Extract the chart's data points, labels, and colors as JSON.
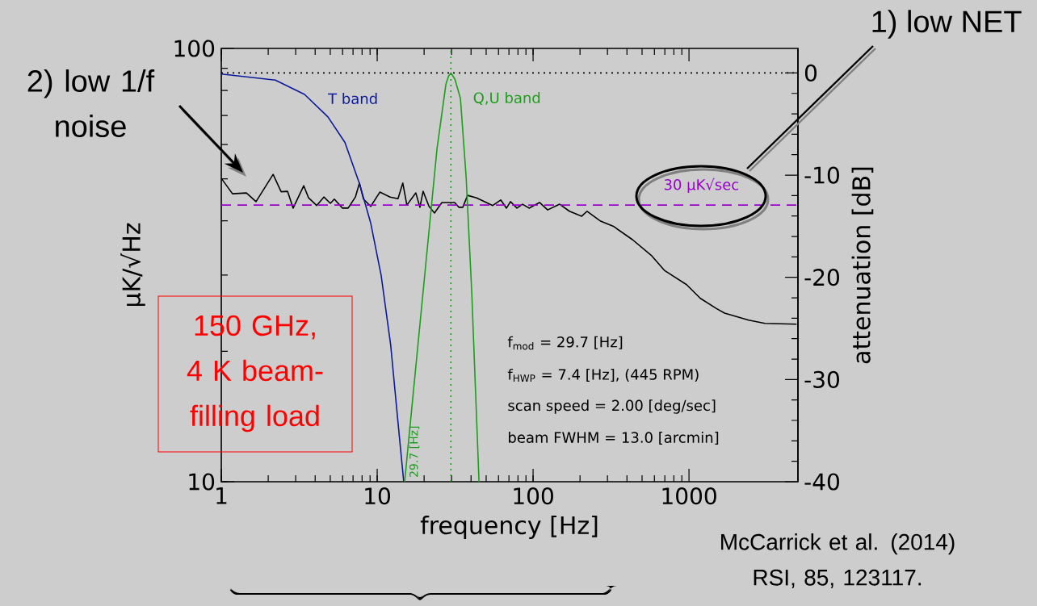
{
  "chart_data": {
    "type": "line",
    "xlabel": "frequency [Hz]",
    "ylabel": "μK/√Hz",
    "y2label": "attenuation [dB]",
    "xlim": [
      1,
      5000
    ],
    "xticks": [
      1,
      10,
      100,
      1000
    ],
    "log": "xy",
    "ylim": [
      10,
      100
    ],
    "yticks": [
      10,
      100
    ],
    "y2lim": [
      -40,
      2.4
    ],
    "y2ticks": [
      0,
      -10,
      -20,
      -30,
      -40
    ],
    "grid": false,
    "series": [
      {
        "color": "#000000",
        "axis": "y",
        "x": [
          1.01,
          1.18,
          1.45,
          1.67,
          2.15,
          2.42,
          2.66,
          2.89,
          3.38,
          3.63,
          4.09,
          4.55,
          5.01,
          5.31,
          5.99,
          6.51,
          7.25,
          7.69,
          8.17,
          9.09,
          10.4,
          12.1,
          13.6,
          14.6,
          15.5,
          17.7,
          18.8,
          19.7,
          21.5,
          23.3,
          26.0,
          31.4,
          33.4,
          35.4,
          38.0,
          43.4,
          55.1,
          62.0,
          67.5,
          71.6,
          78.8,
          85.6,
          94.2,
          110,
          124,
          148,
          171,
          205,
          222,
          269,
          330,
          434,
          578,
          699,
          965,
          1183,
          1500,
          1690,
          2417,
          3069,
          4900
        ],
        "values": [
          49.9,
          46.2,
          46.4,
          44.3,
          51.2,
          46.7,
          46.8,
          42.8,
          48.2,
          45.2,
          43.4,
          45.4,
          43.9,
          44.9,
          42.8,
          42.8,
          45.4,
          48.9,
          44.9,
          43.2,
          46.6,
          45.4,
          45.0,
          48.9,
          43.5,
          46.4,
          43.0,
          46.8,
          43.2,
          41.7,
          44.1,
          44.1,
          43.0,
          43.0,
          45.8,
          45.2,
          43.4,
          44.7,
          42.8,
          44.3,
          42.8,
          43.7,
          42.8,
          44.1,
          42.4,
          43.7,
          42.1,
          41.0,
          42.1,
          40.0,
          38.8,
          36.2,
          33.2,
          30.7,
          28.5,
          26.5,
          25.1,
          24.5,
          23.6,
          23.2,
          23.1
        ]
      },
      {
        "name": "T band",
        "color": "#0a1a9a",
        "axis": "y2",
        "x": [
          1,
          2.22,
          3.42,
          4.83,
          6.21,
          7.69,
          9.09,
          10.6,
          12.2,
          13.6,
          14.8
        ],
        "values": [
          -0.1,
          -0.7,
          -2.1,
          -4.3,
          -6.8,
          -10.8,
          -14.7,
          -19.8,
          -26.6,
          -34.2,
          -40
        ]
      },
      {
        "name": "Q,U band",
        "color": "#1a9e1a",
        "axis": "y2",
        "x": [
          15.0,
          20.5,
          24.2,
          27.6,
          28.7,
          29.7,
          31.5,
          34.2,
          37.2,
          40.4,
          45.0
        ],
        "values": [
          -40,
          -18.7,
          -7.4,
          -1.1,
          -0.3,
          0,
          -0.6,
          -2.5,
          -10.2,
          -21.4,
          -40
        ]
      }
    ],
    "ref_lines": [
      {
        "axis": "y",
        "value": 43.5,
        "label": "30 μK√sec",
        "color": "#9900cc",
        "line_style": "dashed"
      },
      {
        "axis": "y2",
        "value": 0,
        "color": "#000000",
        "line_style": "dotted"
      },
      {
        "axis": "x",
        "value": 29.7,
        "label": "29.7 [Hz]",
        "color": "#1a9e1a",
        "line_style": "dotted"
      }
    ],
    "annotations": [
      "1) low NET",
      "2) low 1/f noise",
      "f$_{mod}$ = 29.7 [Hz]",
      "f$_{HWP}$ = 7.4 [Hz], (445 RPM)",
      "scan speed = 2.00 [deg/sec]",
      "beam FWHM = 13.0 [arcmin]",
      "150 GHz, 4 K beam-filling load",
      "McCarrick et al. (2014) RSI, 85, 123117."
    ]
  }
}
